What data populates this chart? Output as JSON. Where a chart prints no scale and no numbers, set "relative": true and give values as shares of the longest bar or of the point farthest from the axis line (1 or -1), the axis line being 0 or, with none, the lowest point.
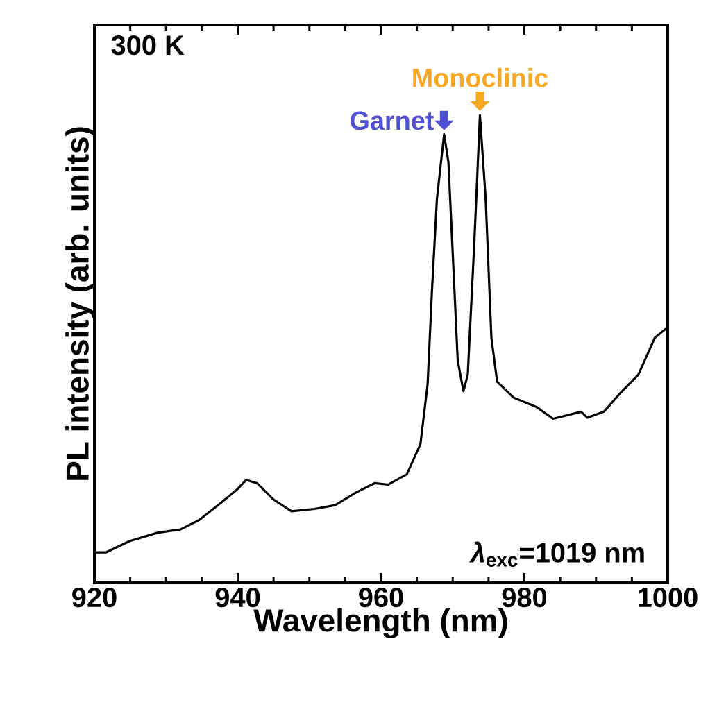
{
  "chart_data": {
    "type": "line",
    "xlabel": "Wavelength (nm)",
    "ylabel": "PL intensity (arb. units)",
    "relative": true,
    "xlim": [
      920,
      1000
    ],
    "xticks": [
      920,
      940,
      960,
      980,
      1000
    ],
    "series": [
      {
        "color": "#000000",
        "x": [
          920,
          921.6,
          924.9,
          928.8,
          932.0,
          934.6,
          937.8,
          939.8,
          941.2,
          942.7,
          945.0,
          947.5,
          950.7,
          953.6,
          956.5,
          959.1,
          961.0,
          963.6,
          965.5,
          966.5,
          967.1,
          967.8,
          968.8,
          969.4,
          970.1,
          970.7,
          971.5,
          972.1,
          973.0,
          973.8,
          974.6,
          975.4,
          976.2,
          978.5,
          981.7,
          984.0,
          985.9,
          987.9,
          988.8,
          991.1,
          993.4,
          995.9,
          998.2,
          999.8
        ],
        "values": [
          0.065,
          0.065,
          0.089,
          0.107,
          0.114,
          0.134,
          0.173,
          0.198,
          0.22,
          0.213,
          0.178,
          0.153,
          0.158,
          0.166,
          0.193,
          0.213,
          0.21,
          0.232,
          0.297,
          0.425,
          0.623,
          0.821,
          0.959,
          0.9,
          0.673,
          0.475,
          0.41,
          0.445,
          0.722,
          1.0,
          0.821,
          0.524,
          0.43,
          0.396,
          0.376,
          0.351,
          0.358,
          0.366,
          0.353,
          0.366,
          0.406,
          0.445,
          0.524,
          0.544
        ]
      }
    ],
    "annotations": [
      "300 K",
      {
        "text": "Garnet",
        "x": 968.8,
        "y": 0.959
      },
      {
        "text": "Monoclinic",
        "x": 973.8,
        "y": 1.0
      },
      "*λ*$_{exc}$=1019 nm"
    ],
    "marker": "none",
    "line_style": "solid"
  }
}
